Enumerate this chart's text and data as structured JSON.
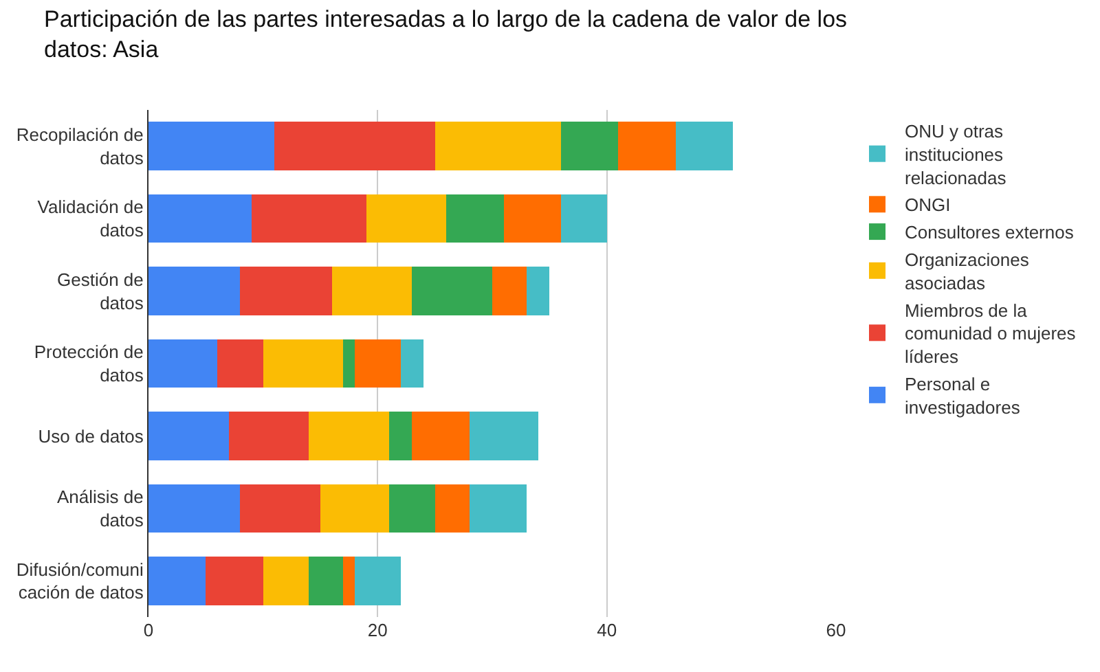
{
  "chart_data": {
    "type": "bar",
    "orientation": "horizontal",
    "stacked": true,
    "title": "Participación de las partes interesadas a lo largo de la cadena de valor de los datos: Asia",
    "categories": [
      "Recopilación de datos",
      "Validación de datos",
      "Gestión de datos",
      "Protección de datos",
      "Uso de datos",
      "Análisis de datos",
      "Difusión/comunicación de datos"
    ],
    "series": [
      {
        "name": "Personal e investigadores",
        "color": "#4285f4",
        "values": [
          11,
          9,
          8,
          6,
          7,
          8,
          5
        ]
      },
      {
        "name": "Miembros de la comunidad o mujeres líderes",
        "color": "#ea4335",
        "values": [
          14,
          10,
          8,
          4,
          7,
          7,
          5
        ]
      },
      {
        "name": "Organizaciones asociadas",
        "color": "#fbbc04",
        "values": [
          11,
          7,
          7,
          7,
          7,
          6,
          4
        ]
      },
      {
        "name": "Consultores externos",
        "color": "#34a853",
        "values": [
          5,
          5,
          7,
          1,
          2,
          4,
          3
        ]
      },
      {
        "name": "ONGI",
        "color": "#ff6d01",
        "values": [
          5,
          5,
          3,
          4,
          5,
          3,
          1
        ]
      },
      {
        "name": "ONU y otras instituciones relacionadas",
        "color": "#46bdc6",
        "values": [
          5,
          4,
          2,
          2,
          6,
          5,
          4
        ]
      }
    ],
    "xlim": [
      0,
      60
    ],
    "xticks": [
      0,
      20,
      40,
      60
    ],
    "grid": "x",
    "legend": "right"
  }
}
